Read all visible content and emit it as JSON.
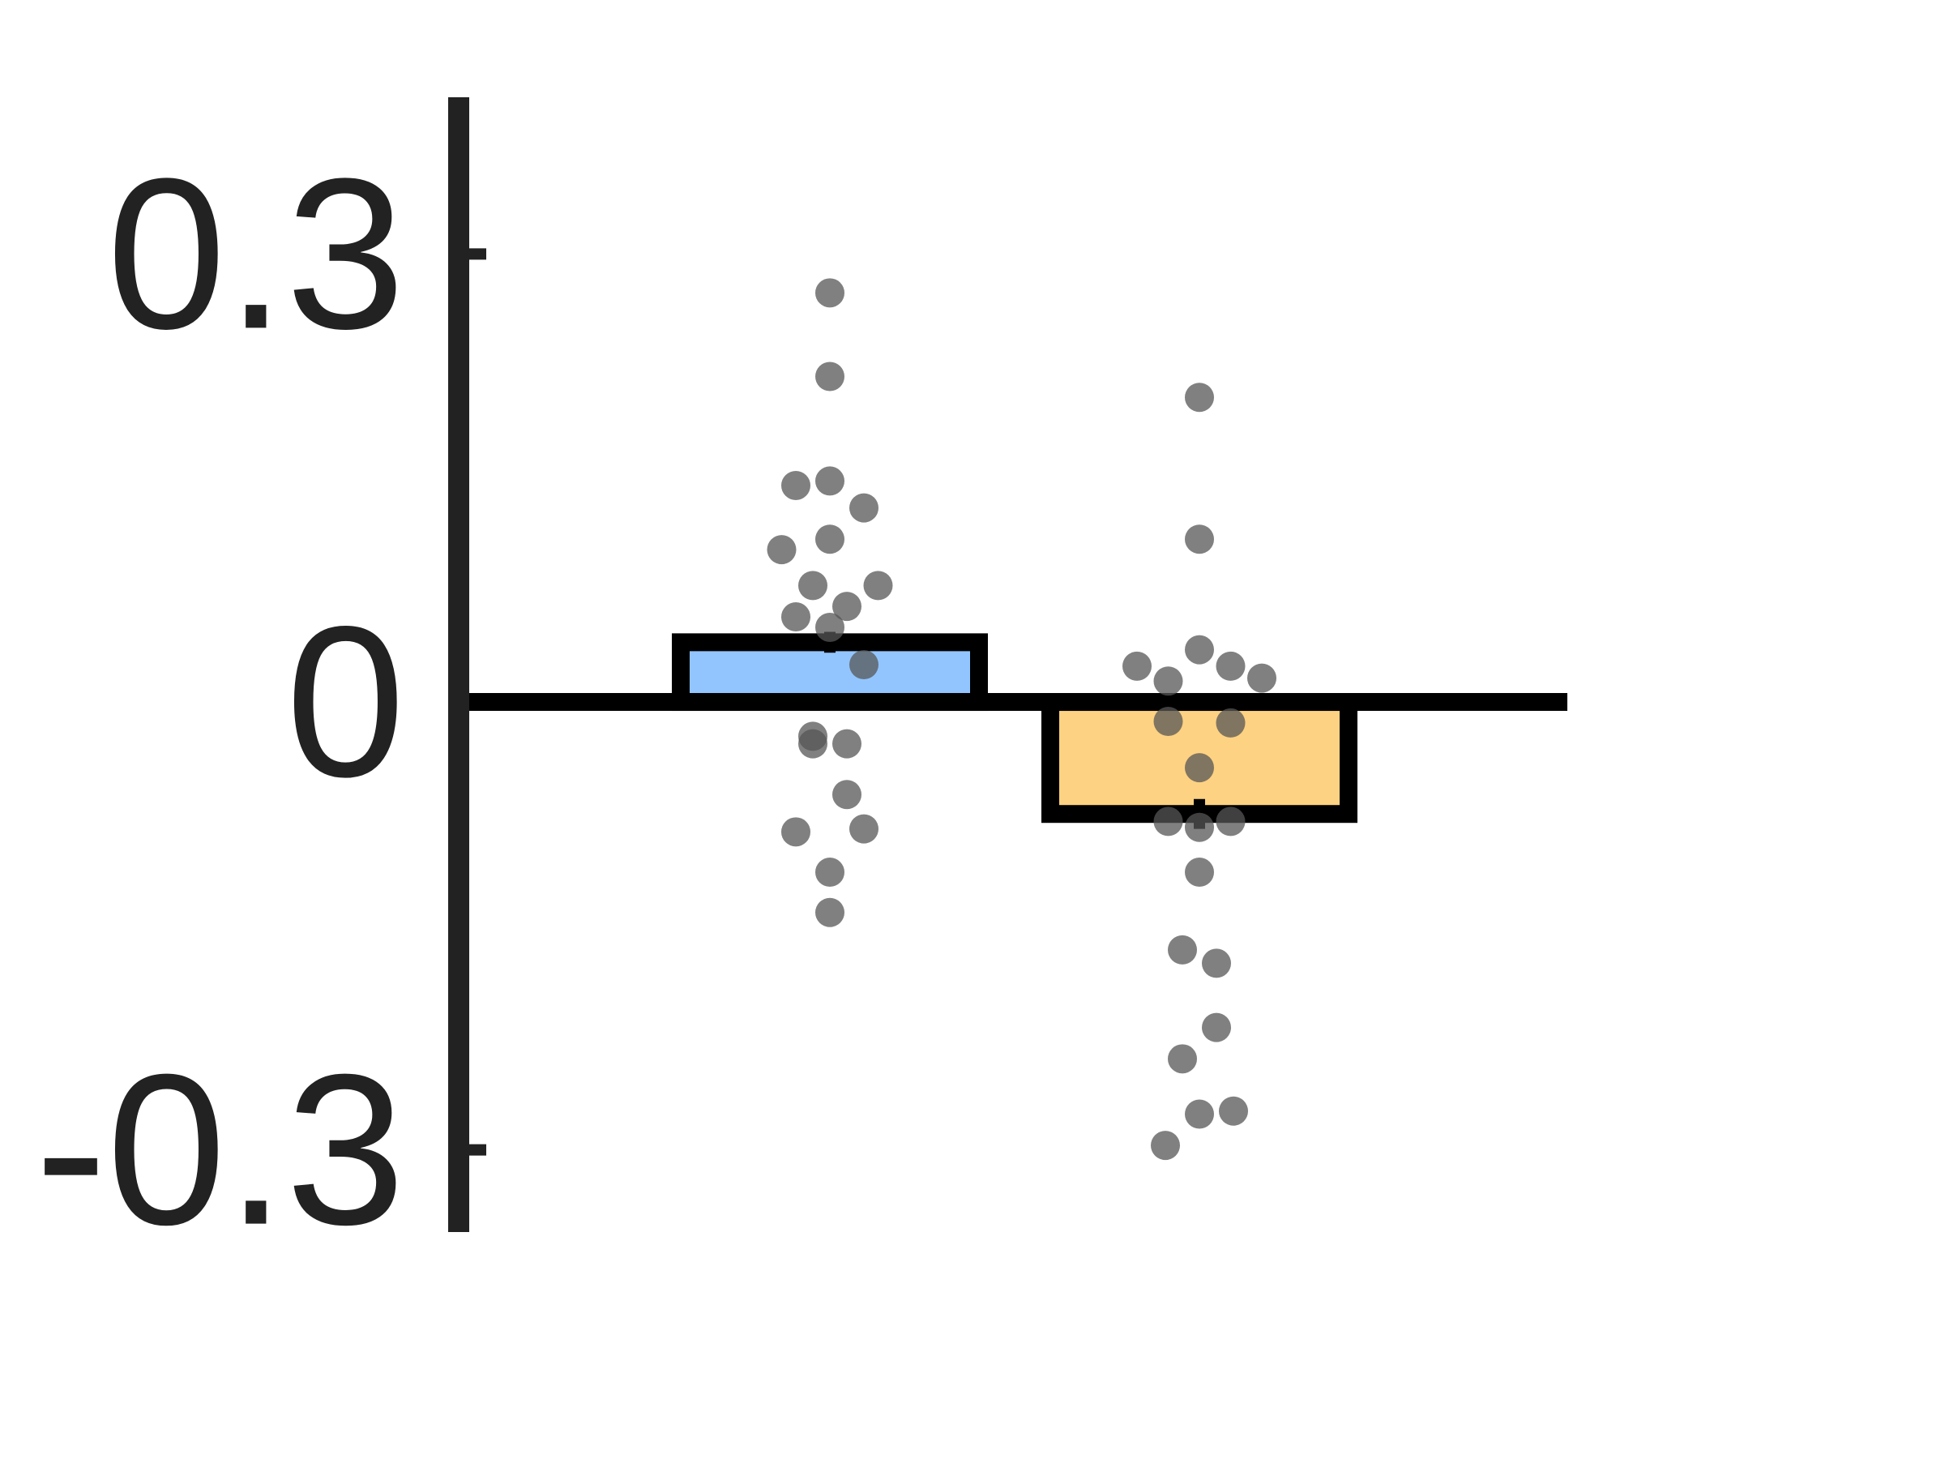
{
  "chart_data": {
    "type": "bar",
    "title": "",
    "xlabel": "",
    "ylabel": "",
    "categories": [
      "",
      ""
    ],
    "ylim": [
      -0.355,
      0.405
    ],
    "yticks": [
      {
        "value": 0.3,
        "label": "0.3"
      },
      {
        "value": 0,
        "label": "0"
      },
      {
        "value": -0.3,
        "label": "-0.3"
      }
    ],
    "grid": false,
    "legend": "none",
    "bars": [
      {
        "value": 0.04,
        "error": 0.007,
        "fill": "#92c5fd"
      },
      {
        "value": -0.075,
        "error": 0.01,
        "fill": "#fdd282"
      }
    ],
    "points": [
      [
        {
          "x": 0,
          "y": 0.274
        },
        {
          "x": 0,
          "y": 0.218
        },
        {
          "x": -0.06,
          "y": 0.145
        },
        {
          "x": 0,
          "y": 0.148
        },
        {
          "x": 0.06,
          "y": 0.13
        },
        {
          "x": -0.085,
          "y": 0.102
        },
        {
          "x": 0,
          "y": 0.109
        },
        {
          "x": -0.03,
          "y": 0.078
        },
        {
          "x": 0.085,
          "y": 0.078
        },
        {
          "x": 0.03,
          "y": 0.064
        },
        {
          "x": -0.06,
          "y": 0.057
        },
        {
          "x": 0,
          "y": 0.05
        },
        {
          "x": 0.06,
          "y": 0.025
        },
        {
          "x": -0.03,
          "y": -0.023
        },
        {
          "x": -0.03,
          "y": -0.028
        },
        {
          "x": 0.03,
          "y": -0.028
        },
        {
          "x": 0.03,
          "y": -0.062
        },
        {
          "x": -0.06,
          "y": -0.087
        },
        {
          "x": 0.06,
          "y": -0.085
        },
        {
          "x": 0,
          "y": -0.114
        },
        {
          "x": 0,
          "y": -0.141
        }
      ],
      [
        {
          "x": 0,
          "y": 0.204
        },
        {
          "x": 0,
          "y": 0.109
        },
        {
          "x": 0,
          "y": 0.035
        },
        {
          "x": -0.11,
          "y": 0.024
        },
        {
          "x": 0.055,
          "y": 0.024
        },
        {
          "x": -0.055,
          "y": 0.014
        },
        {
          "x": 0.11,
          "y": 0.016
        },
        {
          "x": -0.055,
          "y": -0.013
        },
        {
          "x": 0.055,
          "y": -0.014
        },
        {
          "x": 0,
          "y": -0.044
        },
        {
          "x": -0.055,
          "y": -0.08
        },
        {
          "x": 0.055,
          "y": -0.08
        },
        {
          "x": 0,
          "y": -0.084
        },
        {
          "x": 0,
          "y": -0.114
        },
        {
          "x": -0.03,
          "y": -0.166
        },
        {
          "x": 0.03,
          "y": -0.175
        },
        {
          "x": 0.03,
          "y": -0.218
        },
        {
          "x": -0.03,
          "y": -0.239
        },
        {
          "x": 0,
          "y": -0.276
        },
        {
          "x": 0.06,
          "y": -0.274
        },
        {
          "x": -0.06,
          "y": -0.297
        }
      ]
    ],
    "colors": {
      "axis": "#222222",
      "outline": "#000000",
      "points": "#555555"
    }
  }
}
